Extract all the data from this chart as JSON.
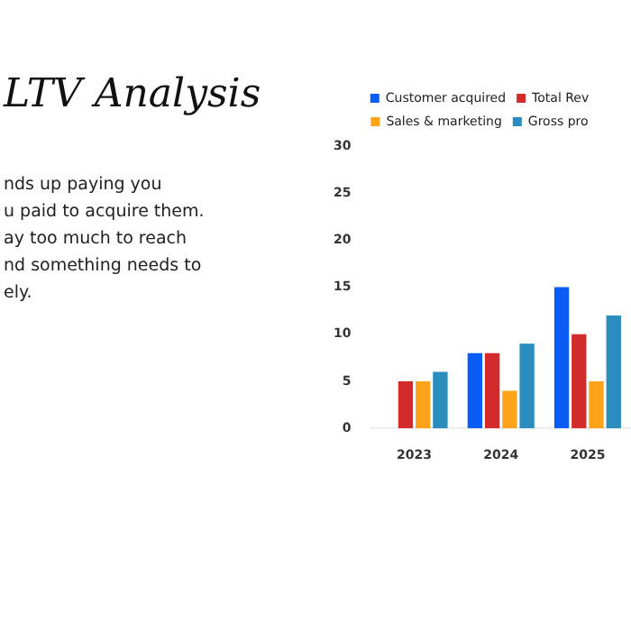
{
  "chart_data": {
    "type": "bar",
    "title": "LTV Analysis",
    "annotations": [
      "nds up paying you",
      "u paid to acquire them.",
      "ay too much to reach",
      "nd something needs to",
      "ely."
    ],
    "categories": [
      "2023",
      "2024",
      "2025"
    ],
    "series": [
      {
        "name": "Customer acquired",
        "color": "#0a5cf5",
        "values": [
          0,
          8,
          15
        ]
      },
      {
        "name": "Total Rev",
        "color": "#d32b2b",
        "values": [
          5,
          8,
          10
        ]
      },
      {
        "name": "Sales & marketing",
        "color": "#ffa31a",
        "values": [
          5,
          4,
          5
        ]
      },
      {
        "name": "Gross pro",
        "color": "#2b8cbe",
        "values": [
          6,
          9,
          12
        ]
      }
    ],
    "ylim": [
      0,
      30
    ],
    "yticks": [
      0,
      5,
      10,
      15,
      20,
      25,
      30
    ],
    "grid": false,
    "legend": "top"
  }
}
